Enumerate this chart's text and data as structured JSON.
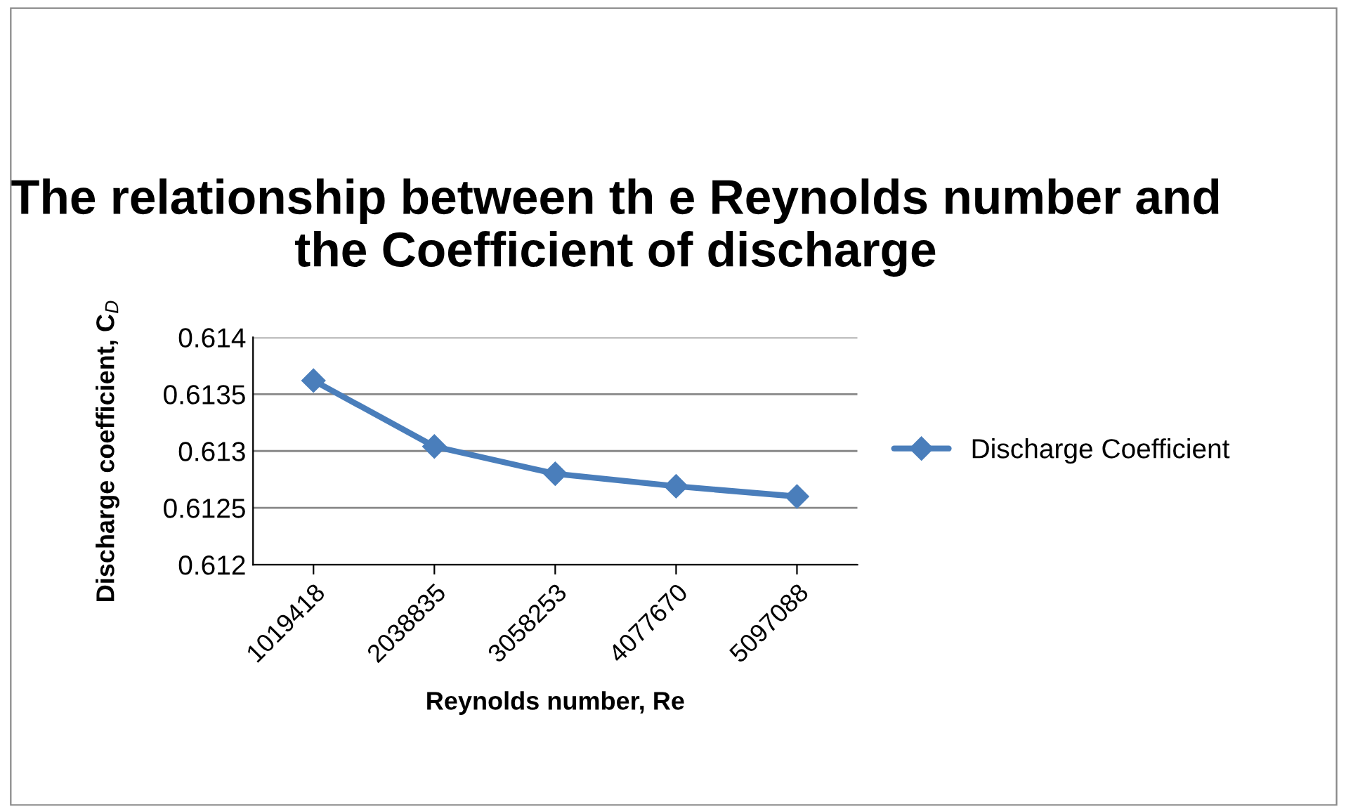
{
  "chart_data": {
    "type": "line",
    "title": "The relationship between th e Reynolds number and the Coefficient of discharge",
    "xlabel": "Reynolds number, Re",
    "ylabel": "Discharge coefficient, C$_{D}$",
    "categories": [
      "1019418",
      "2038835",
      "3058253",
      "4077670",
      "5097088"
    ],
    "series": [
      {
        "name": "Discharge Coefficient",
        "color": "#4a7ebb",
        "values": [
          0.61362,
          0.61304,
          0.6128,
          0.61269,
          0.6126
        ]
      }
    ],
    "ylim": [
      0.612,
      0.614
    ],
    "yticks": [
      0.612,
      0.6125,
      0.613,
      0.6135,
      0.614
    ],
    "grid": "y",
    "legend": "right",
    "marker": "diamond",
    "line_style": "solid"
  }
}
